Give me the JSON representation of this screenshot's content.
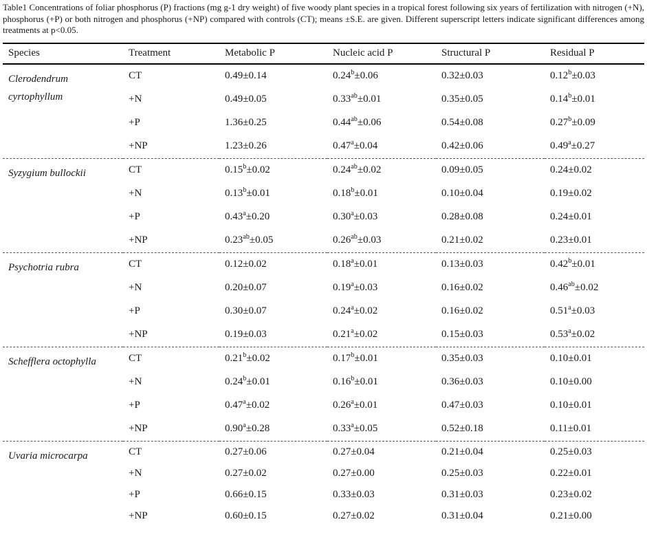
{
  "colors": {
    "background": "#ffffff",
    "text": "#1a1a1a",
    "rule_solid": "#000000",
    "rule_dashed": "#555555"
  },
  "caption": {
    "text": "Table1 Concentrations of foliar phosphorus (P) fractions (mg g-1 dry weight) of five woody plant species in a tropical forest following six years of fertilization with nitrogen (+N), phosphorus (+P) or both nitrogen and phosphorus (+NP) compared with controls (CT); means ±S.E. are given. Different superscript letters indicate significant differences among treatments at p<0.05."
  },
  "table": {
    "columns": [
      "Species",
      "Treatment",
      "Metabolic P",
      "Nucleic acid P",
      "Structural P",
      "Residual P"
    ],
    "value_keys": [
      "metabolic_p",
      "nucleic_acid_p",
      "structural_p",
      "residual_p"
    ],
    "species_blocks": [
      {
        "species": "Clerodendrum cyrtophyllum",
        "rows": [
          {
            "treatment": "CT",
            "metabolic_p": "0.49±0.14",
            "nucleic_acid_p": "0.24^b^±0.06",
            "structural_p": "0.32±0.03",
            "residual_p": "0.12^b^±0.03"
          },
          {
            "treatment": "+N",
            "metabolic_p": "0.49±0.05",
            "nucleic_acid_p": "0.33^ab^±0.01",
            "structural_p": "0.35±0.05",
            "residual_p": "0.14^b^±0.01"
          },
          {
            "treatment": "+P",
            "metabolic_p": "1.36±0.25",
            "nucleic_acid_p": "0.44^ab^±0.06",
            "structural_p": "0.54±0.08",
            "residual_p": "0.27^b^±0.09"
          },
          {
            "treatment": "+NP",
            "metabolic_p": "1.23±0.26",
            "nucleic_acid_p": "0.47^a^±0.04",
            "structural_p": "0.42±0.06",
            "residual_p": "0.49^a^±0.27"
          }
        ]
      },
      {
        "species": "Syzygium bullockii",
        "rows": [
          {
            "treatment": "CT",
            "metabolic_p": "0.15^b^±0.02",
            "nucleic_acid_p": "0.24^ab^±0.02",
            "structural_p": "0.09±0.05",
            "residual_p": "0.24±0.02"
          },
          {
            "treatment": "+N",
            "metabolic_p": "0.13^b^±0.01",
            "nucleic_acid_p": "0.18^b^±0.01",
            "structural_p": "0.10±0.04",
            "residual_p": "0.19±0.02"
          },
          {
            "treatment": "+P",
            "metabolic_p": "0.43^a^±0.20",
            "nucleic_acid_p": "0.30^a^±0.03",
            "structural_p": "0.28±0.08",
            "residual_p": "0.24±0.01"
          },
          {
            "treatment": "+NP",
            "metabolic_p": "0.23^ab^±0.05",
            "nucleic_acid_p": "0.26^ab^±0.03",
            "structural_p": "0.21±0.02",
            "residual_p": "0.23±0.01"
          }
        ]
      },
      {
        "species": "Psychotria rubra",
        "rows": [
          {
            "treatment": "CT",
            "metabolic_p": "0.12±0.02",
            "nucleic_acid_p": "0.18^a^±0.01",
            "structural_p": "0.13±0.03",
            "residual_p": "0.42^b^±0.01"
          },
          {
            "treatment": "+N",
            "metabolic_p": "0.20±0.07",
            "nucleic_acid_p": "0.19^a^±0.03",
            "structural_p": "0.16±0.02",
            "residual_p": "0.46^ab^±0.02"
          },
          {
            "treatment": "+P",
            "metabolic_p": "0.30±0.07",
            "nucleic_acid_p": "0.24^a^±0.02",
            "structural_p": "0.16±0.02",
            "residual_p": "0.51^a^±0.03"
          },
          {
            "treatment": "+NP",
            "metabolic_p": "0.19±0.03",
            "nucleic_acid_p": "0.21^a^±0.02",
            "structural_p": "0.15±0.03",
            "residual_p": "0.53^a^±0.02"
          }
        ]
      },
      {
        "species": "Schefflera octophylla",
        "rows": [
          {
            "treatment": "CT",
            "metabolic_p": "0.21^b^±0.02",
            "nucleic_acid_p": "0.17^b^±0.01",
            "structural_p": "0.35±0.03",
            "residual_p": "0.10±0.01"
          },
          {
            "treatment": "+N",
            "metabolic_p": "0.24^b^±0.01",
            "nucleic_acid_p": "0.16^b^±0.01",
            "structural_p": "0.36±0.03",
            "residual_p": "0.10±0.00"
          },
          {
            "treatment": "+P",
            "metabolic_p": "0.47^a^±0.02",
            "nucleic_acid_p": "0.26^a^±0.01",
            "structural_p": "0.47±0.03",
            "residual_p": "0.10±0.01"
          },
          {
            "treatment": "+NP",
            "metabolic_p": "0.90^a^±0.28",
            "nucleic_acid_p": "0.33^a^±0.05",
            "structural_p": "0.52±0.18",
            "residual_p": "0.11±0.01"
          }
        ]
      },
      {
        "species": "Uvaria microcarpa",
        "rows": [
          {
            "treatment": "CT",
            "metabolic_p": "0.27±0.06",
            "nucleic_acid_p": "0.27±0.04",
            "structural_p": "0.21±0.04",
            "residual_p": "0.25±0.03"
          },
          {
            "treatment": "+N",
            "metabolic_p": "0.27±0.02",
            "nucleic_acid_p": "0.27±0.00",
            "structural_p": "0.25±0.03",
            "residual_p": "0.22±0.01"
          },
          {
            "treatment": "+P",
            "metabolic_p": "0.66±0.15",
            "nucleic_acid_p": "0.33±0.03",
            "structural_p": "0.31±0.03",
            "residual_p": "0.23±0.02"
          },
          {
            "treatment": "+NP",
            "metabolic_p": "0.60±0.15",
            "nucleic_acid_p": "0.27±0.02",
            "structural_p": "0.31±0.04",
            "residual_p": "0.21±0.00"
          }
        ]
      }
    ]
  }
}
